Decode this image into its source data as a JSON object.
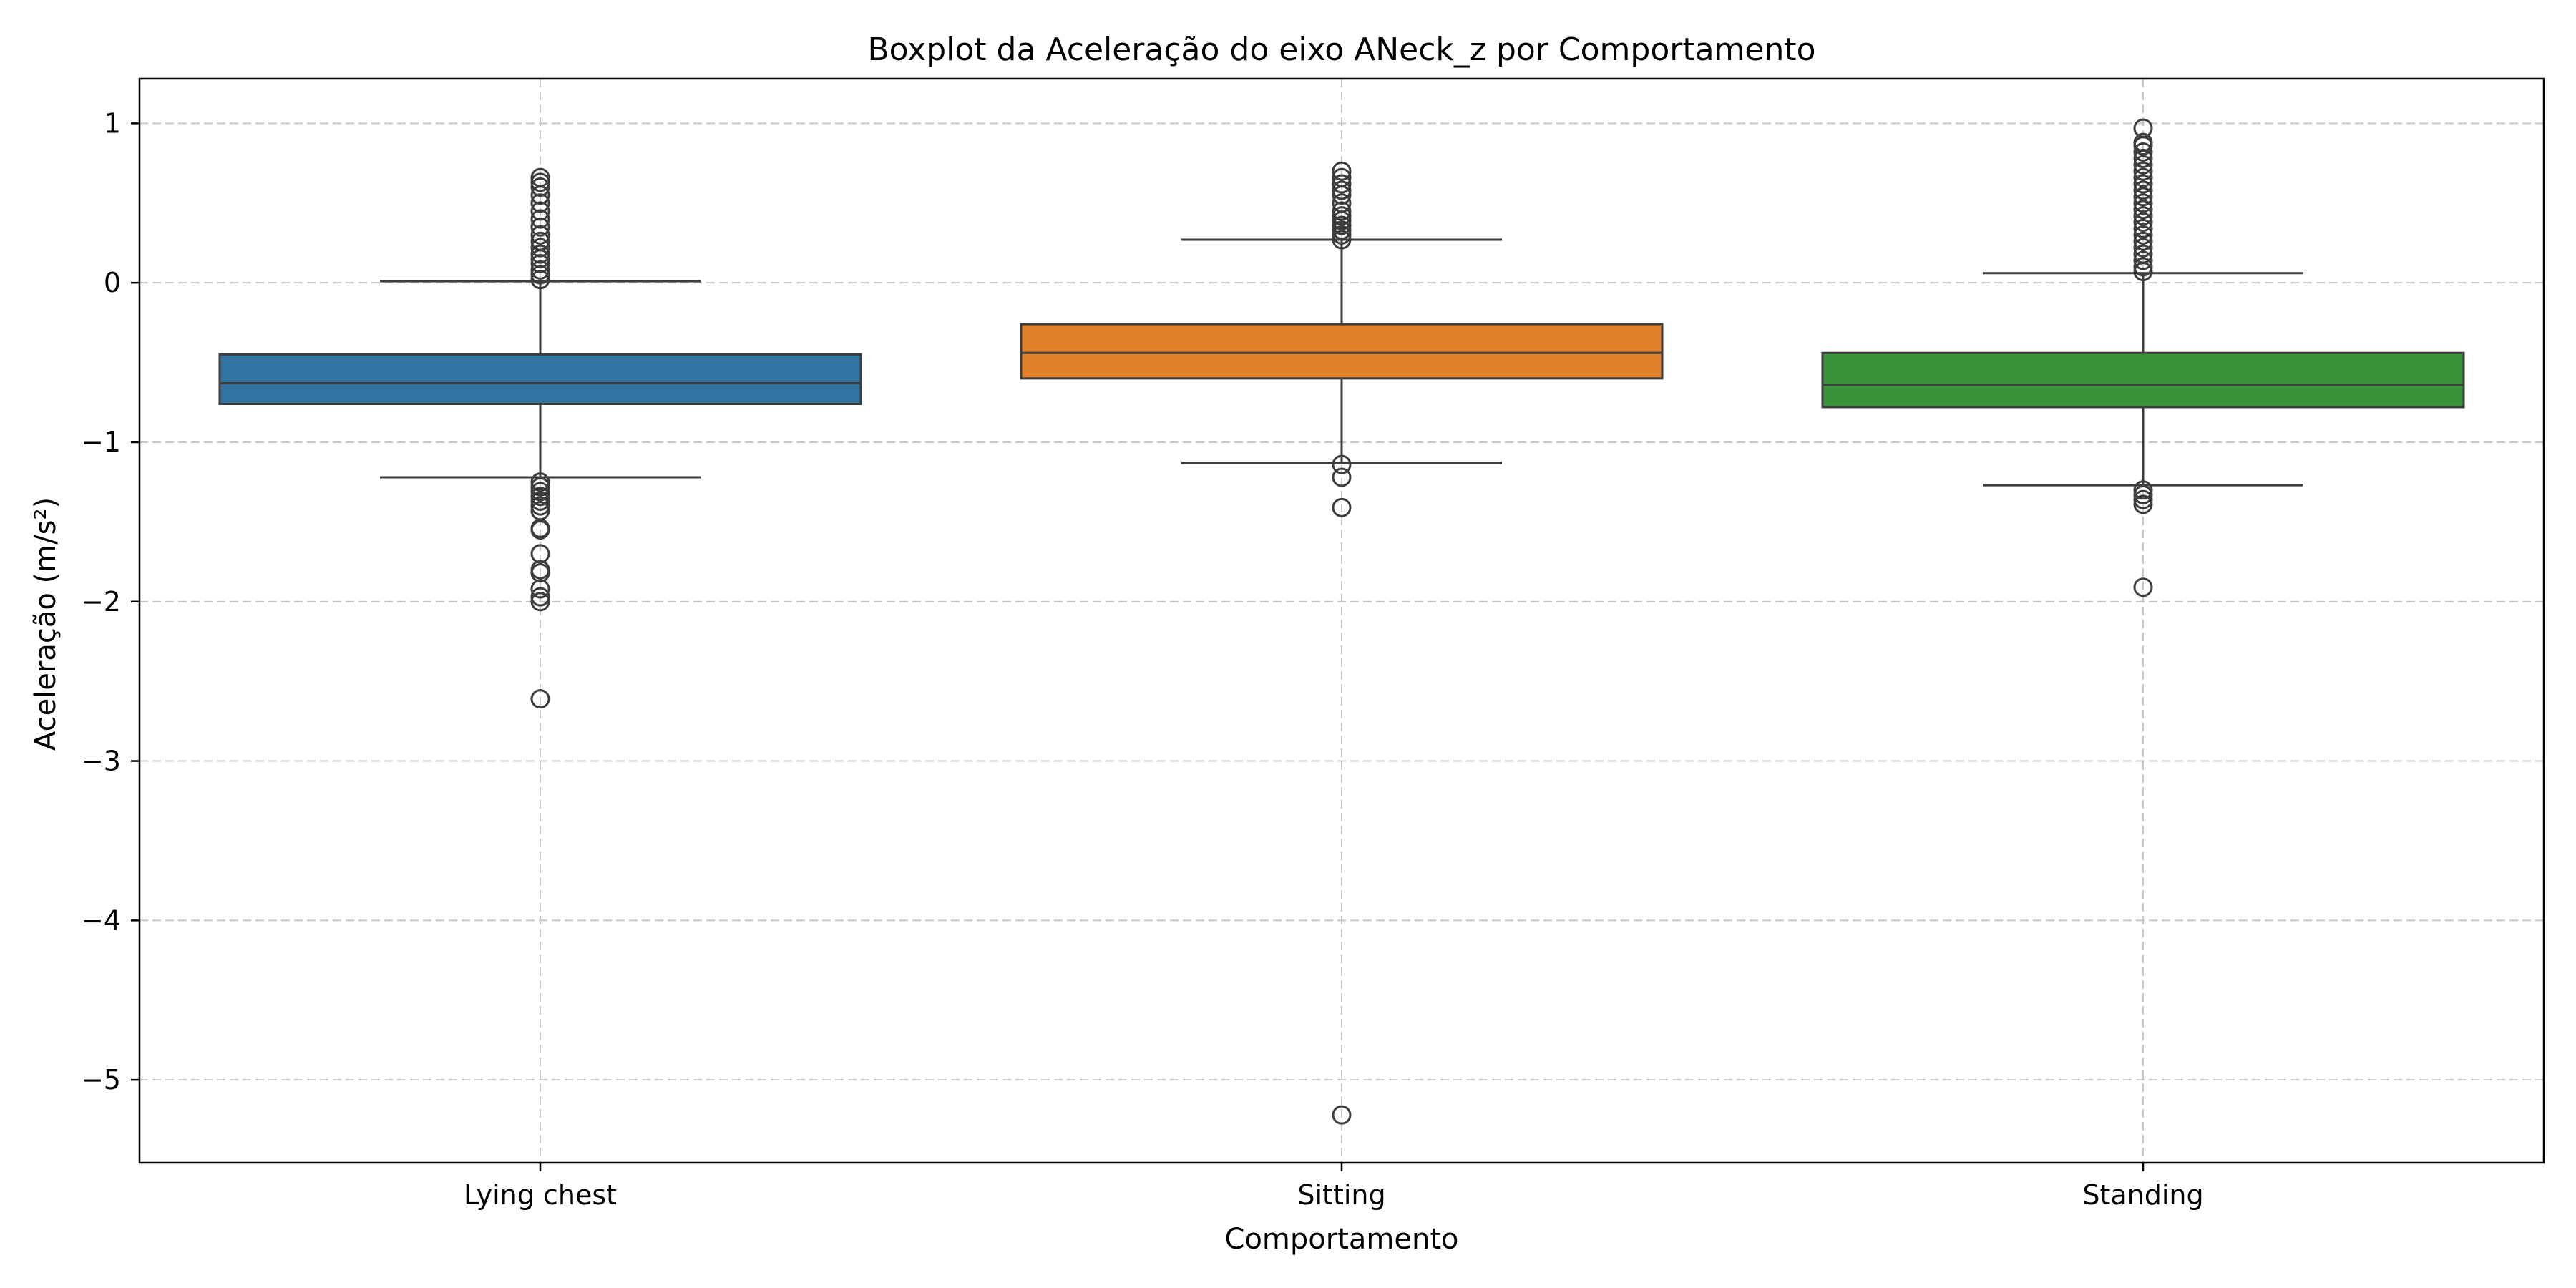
{
  "chart_data": {
    "type": "boxplot",
    "title": "Boxplot da Aceleração do eixo ANeck_z por Comportamento",
    "xlabel": "Comportamento",
    "ylabel": "Aceleração (m/s²)",
    "ylim": [
      -5.52,
      1.28
    ],
    "yticks": [
      1,
      0,
      -1,
      -2,
      -3,
      -4,
      -5
    ],
    "ytick_labels": [
      "1",
      "0",
      "−1",
      "−2",
      "−3",
      "−4",
      "−5"
    ],
    "grid": true,
    "categories": [
      "Lying chest",
      "Sitting",
      "Standing"
    ],
    "colors": [
      "#3274a1",
      "#e1812c",
      "#3a923a"
    ],
    "series": [
      {
        "category": "Lying chest",
        "whisker_low": -1.22,
        "q1": -0.76,
        "median": -0.63,
        "q3": -0.45,
        "whisker_high": 0.01,
        "outliers_high": [
          0.02,
          0.05,
          0.08,
          0.12,
          0.15,
          0.18,
          0.22,
          0.26,
          0.3,
          0.35,
          0.4,
          0.45,
          0.5,
          0.55,
          0.6,
          0.63,
          0.66
        ],
        "outliers_low": [
          -1.25,
          -1.28,
          -1.31,
          -1.34,
          -1.37,
          -1.4,
          -1.43,
          -1.54,
          -1.55,
          -1.7,
          -1.8,
          -1.82,
          -1.92,
          -1.97,
          -2.0,
          -2.61
        ]
      },
      {
        "category": "Sitting",
        "whisker_low": -1.13,
        "q1": -0.6,
        "median": -0.44,
        "q3": -0.26,
        "whisker_high": 0.27,
        "outliers_high": [
          0.27,
          0.3,
          0.33,
          0.36,
          0.39,
          0.42,
          0.45,
          0.5,
          0.55,
          0.58,
          0.62,
          0.66,
          0.7
        ],
        "outliers_low": [
          -1.14,
          -1.22,
          -1.41,
          -5.22
        ]
      },
      {
        "category": "Standing",
        "whisker_low": -1.27,
        "q1": -0.78,
        "median": -0.64,
        "q3": -0.44,
        "whisker_high": 0.06,
        "outliers_high": [
          0.07,
          0.1,
          0.14,
          0.18,
          0.22,
          0.26,
          0.3,
          0.34,
          0.38,
          0.42,
          0.46,
          0.5,
          0.54,
          0.58,
          0.62,
          0.66,
          0.7,
          0.74,
          0.78,
          0.82,
          0.86,
          0.88,
          0.97
        ],
        "outliers_low": [
          -1.3,
          -1.33,
          -1.36,
          -1.39,
          -1.91
        ]
      }
    ]
  }
}
